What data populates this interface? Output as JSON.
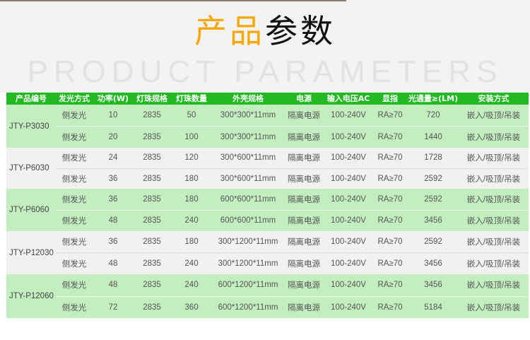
{
  "title": {
    "part1": "产品",
    "part2": "参数",
    "background_text": "PRODUCT PARAMETERS"
  },
  "colors": {
    "header": "#22b922",
    "accent": "#f5a80a",
    "row_green": "#c3efc0",
    "row_gray": "#f1f1f1"
  },
  "headers": [
    "产品编号",
    "发光方式",
    "功率(W)",
    "灯珠规格",
    "灯珠数量",
    "外壳规格",
    "电源",
    "输入电压AC",
    "显指",
    "光通量≥(LM)",
    "安装方式"
  ],
  "groups": [
    {
      "id": "JTY-P3030",
      "rows": [
        [
          "侧发光",
          "10",
          "2835",
          "50",
          "300*300*11mm",
          "隔离电源",
          "100-240V",
          "RA≥70",
          "720",
          "嵌入/吸顶/吊装"
        ],
        [
          "侧发光",
          "20",
          "2835",
          "100",
          "300*300*11mm",
          "隔离电源",
          "100-240V",
          "RA≥70",
          "1440",
          "嵌入/吸顶/吊装"
        ]
      ]
    },
    {
      "id": "JTY-P6030",
      "rows": [
        [
          "侧发光",
          "24",
          "2835",
          "120",
          "300*600*11mm",
          "隔离电源",
          "100-240V",
          "RA≥70",
          "1728",
          "嵌入/吸顶/吊装"
        ],
        [
          "侧发光",
          "36",
          "2835",
          "180",
          "300*600*11mm",
          "隔离电源",
          "100-240V",
          "RA≥70",
          "2592",
          "嵌入/吸顶/吊装"
        ]
      ]
    },
    {
      "id": "JTY-P6060",
      "rows": [
        [
          "侧发光",
          "36",
          "2835",
          "180",
          "600*600*11mm",
          "隔离电源",
          "100-240V",
          "RA≥70",
          "2592",
          "嵌入/吸顶/吊装"
        ],
        [
          "侧发光",
          "48",
          "2835",
          "240",
          "600*600*11mm",
          "隔离电源",
          "100-240V",
          "RA≥70",
          "3456",
          "嵌入/吸顶/吊装"
        ]
      ]
    },
    {
      "id": "JTY-P12030",
      "rows": [
        [
          "侧发光",
          "36",
          "2835",
          "180",
          "300*1200*11mm",
          "隔离电源",
          "100-240V",
          "RA≥70",
          "2592",
          "嵌入/吸顶/吊装"
        ],
        [
          "侧发光",
          "48",
          "2835",
          "240",
          "300*1200*11mm",
          "隔离电源",
          "100-240V",
          "RA≥70",
          "3456",
          "嵌入/吸顶/吊装"
        ]
      ]
    },
    {
      "id": "JTY-P12060",
      "rows": [
        [
          "侧发光",
          "48",
          "2835",
          "240",
          "600*1200*11mm",
          "隔离电源",
          "100-240V",
          "RA≥70",
          "3456",
          "嵌入/吸顶/吊装"
        ],
        [
          "侧发光",
          "72",
          "2835",
          "360",
          "600*1200*11mm",
          "隔离电源",
          "100-240V",
          "RA≥70",
          "5184",
          "嵌入/吸顶/吊装"
        ]
      ]
    }
  ]
}
